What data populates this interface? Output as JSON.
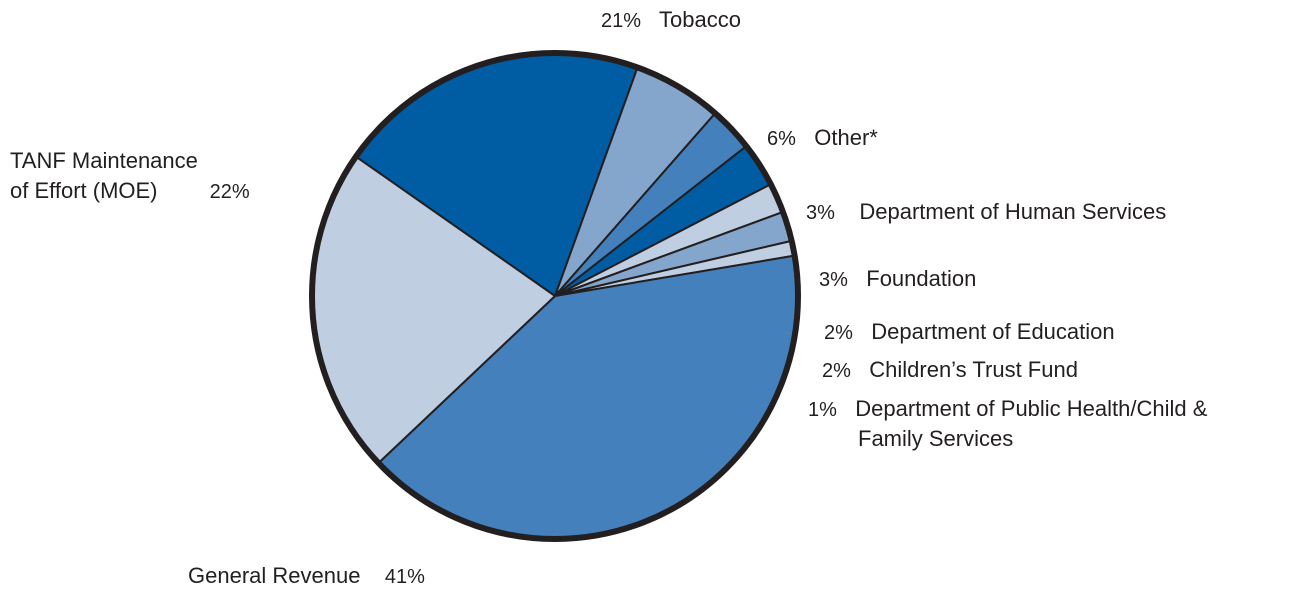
{
  "chart_data": {
    "type": "pie",
    "title": "",
    "colors": {
      "dark_blue": "#005da4",
      "mid_blue": "#4480bb",
      "light_blue": "#85a6cc",
      "pale_blue": "#bfcee1",
      "outline": "#231f20"
    },
    "slices": [
      {
        "label": "Tobacco",
        "value": 21,
        "pct_label": "21%",
        "color": "#005da4"
      },
      {
        "label": "Other*",
        "value": 6,
        "pct_label": "6%",
        "color": "#85a6cc"
      },
      {
        "label": "Department of Human Services",
        "value": 3,
        "pct_label": "3%",
        "color": "#4480bb"
      },
      {
        "label": "Foundation",
        "value": 3,
        "pct_label": "3%",
        "color": "#005da4"
      },
      {
        "label": "Department of Education",
        "value": 2,
        "pct_label": "2%",
        "color": "#bfcee1"
      },
      {
        "label": "Children’s Trust Fund",
        "value": 2,
        "pct_label": "2%",
        "color": "#85a6cc"
      },
      {
        "label": "Department of Public Health/Child & Family Services",
        "label_lines": [
          "Department of Public Health/Child &",
          "Family Services"
        ],
        "value": 1,
        "pct_label": "1%",
        "color": "#bfcee1"
      },
      {
        "label": "General Revenue",
        "value": 41,
        "pct_label": "41%",
        "color": "#4480bb"
      },
      {
        "label": "TANF Maintenance of Effort (MOE)",
        "label_lines": [
          "TANF Maintenance",
          "of Effort (MOE)"
        ],
        "value": 22,
        "pct_label": "22%",
        "color": "#bfcee1"
      }
    ]
  }
}
